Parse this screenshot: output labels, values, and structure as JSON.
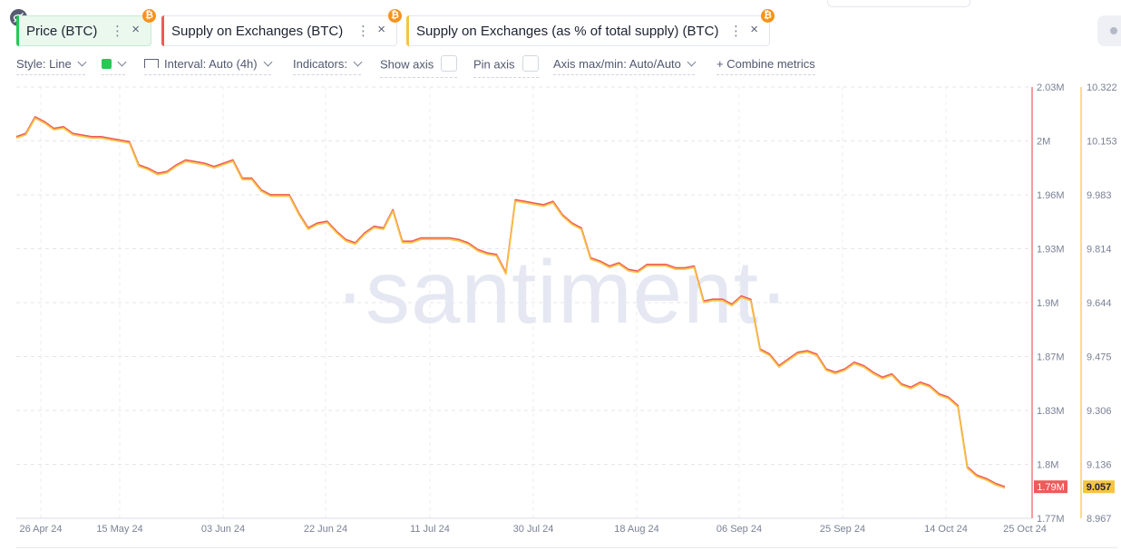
{
  "metrics": [
    {
      "label": "Price (BTC)",
      "color": "#26c953",
      "menu": "⋮",
      "close": "×",
      "badge": "₿"
    },
    {
      "label": "Supply on Exchanges (BTC)",
      "color": "#ef5a5a",
      "menu": "⋮",
      "close": "×",
      "badge": "₿"
    },
    {
      "label": "Supply on Exchanges (as % of total supply) (BTC)",
      "color": "#f5c542",
      "menu": "⋮",
      "close": "×",
      "badge": "₿"
    }
  ],
  "toolbar": {
    "style": "Style: Line",
    "interval": "Interval: Auto (4h)",
    "indicators": "Indicators:",
    "show_axis": "Show axis",
    "pin_axis": "Pin axis",
    "axis_maxmin": "Axis max/min: Auto/Auto",
    "combine": "+ Combine metrics",
    "swatch_color": "#26c953"
  },
  "chart_data": {
    "type": "line",
    "watermark": "·santiment·",
    "x_ticks": [
      "26 Apr 24",
      "15 May 24",
      "03 Jun 24",
      "22 Jun 24",
      "11 Jul 24",
      "30 Jul 24",
      "18 Aug 24",
      "06 Sep 24",
      "25 Sep 24",
      "14 Oct 24",
      "25 Oct 24"
    ],
    "y_left": {
      "ticks": [
        "2.03M",
        "2M",
        "1.96M",
        "1.93M",
        "1.9M",
        "1.87M",
        "1.83M",
        "1.8M",
        "1.77M"
      ],
      "current": "1.79M",
      "color": "#ef5a5a"
    },
    "y_right": {
      "ticks": [
        "10.322",
        "10.153",
        "9.983",
        "9.814",
        "9.644",
        "9.475",
        "9.306",
        "9.136",
        "8.967"
      ],
      "current": "9.057",
      "color": "#f5c542"
    },
    "ylim": [
      1.77,
      2.03
    ],
    "series": [
      {
        "name": "Supply on Exchanges (BTC)",
        "color": "#ef5a5a",
        "unit": "M",
        "points": [
          [
            "26 Apr 24",
            2.0
          ],
          [
            "27 Apr 24",
            2.002
          ],
          [
            "28 Apr 24",
            2.012
          ],
          [
            "29 Apr 24",
            2.009
          ],
          [
            "30 Apr 24",
            2.005
          ],
          [
            "1 May 24",
            2.006
          ],
          [
            "2 May 24",
            2.002
          ],
          [
            "3 May 24",
            2.001
          ],
          [
            "4 May 24",
            2.0
          ],
          [
            "5 May 24",
            2.0
          ],
          [
            "6 May 24",
            1.999
          ],
          [
            "7 May 24",
            1.998
          ],
          [
            "8 May 24",
            1.997
          ],
          [
            "9 May 24",
            1.983
          ],
          [
            "10 May 24",
            1.981
          ],
          [
            "11 May 24",
            1.978
          ],
          [
            "12 May 24",
            1.979
          ],
          [
            "13 May 24",
            1.983
          ],
          [
            "14 May 24",
            1.986
          ],
          [
            "15 May 24",
            1.985
          ],
          [
            "16 May 24",
            1.984
          ],
          [
            "17 May 24",
            1.982
          ],
          [
            "18 May 24",
            1.984
          ],
          [
            "19 May 24",
            1.986
          ],
          [
            "20 May 24",
            1.975
          ],
          [
            "22 May 24",
            1.975
          ],
          [
            "24 May 24",
            1.968
          ],
          [
            "26 May 24",
            1.965
          ],
          [
            "28 May 24",
            1.965
          ],
          [
            "30 May 24",
            1.965
          ],
          [
            "1 Jun 24",
            1.954
          ],
          [
            "3 Jun 24",
            1.945
          ],
          [
            "5 Jun 24",
            1.948
          ],
          [
            "7 Jun 24",
            1.949
          ],
          [
            "9 Jun 24",
            1.943
          ],
          [
            "11 Jun 24",
            1.938
          ],
          [
            "13 Jun 24",
            1.936
          ],
          [
            "15 Jun 24",
            1.942
          ],
          [
            "17 Jun 24",
            1.946
          ],
          [
            "19 Jun 24",
            1.945
          ],
          [
            "20 Jun 24",
            1.956
          ],
          [
            "21 Jun 24",
            1.937
          ],
          [
            "23 Jun 24",
            1.937
          ],
          [
            "25 Jun 24",
            1.939
          ],
          [
            "27 Jun 24",
            1.939
          ],
          [
            "29 Jun 24",
            1.939
          ],
          [
            "1 Jul 24",
            1.939
          ],
          [
            "3 Jul 24",
            1.938
          ],
          [
            "5 Jul 24",
            1.936
          ],
          [
            "7 Jul 24",
            1.932
          ],
          [
            "9 Jul 24",
            1.93
          ],
          [
            "11 Jul 24",
            1.929
          ],
          [
            "13 Jul 24",
            1.918
          ],
          [
            "14 Jul 24",
            1.962
          ],
          [
            "15 Jul 24",
            1.961
          ],
          [
            "17 Jul 24",
            1.96
          ],
          [
            "19 Jul 24",
            1.959
          ],
          [
            "21 Jul 24",
            1.961
          ],
          [
            "23 Jul 24",
            1.953
          ],
          [
            "25 Jul 24",
            1.948
          ],
          [
            "27 Jul 24",
            1.945
          ],
          [
            "29 Jul 24",
            1.927
          ],
          [
            "31 Jul 24",
            1.925
          ],
          [
            "2 Aug 24",
            1.922
          ],
          [
            "4 Aug 24",
            1.924
          ],
          [
            "6 Aug 24",
            1.92
          ],
          [
            "8 Aug 24",
            1.919
          ],
          [
            "10 Aug 24",
            1.923
          ],
          [
            "12 Aug 24",
            1.923
          ],
          [
            "14 Aug 24",
            1.923
          ],
          [
            "16 Aug 24",
            1.921
          ],
          [
            "18 Aug 24",
            1.921
          ],
          [
            "20 Aug 24",
            1.922
          ],
          [
            "22 Aug 24",
            1.901
          ],
          [
            "24 Aug 24",
            1.902
          ],
          [
            "26 Aug 24",
            1.902
          ],
          [
            "28 Aug 24",
            1.899
          ],
          [
            "30 Aug 24",
            1.904
          ],
          [
            "1 Sep 24",
            1.902
          ],
          [
            "3 Sep 24",
            1.872
          ],
          [
            "5 Sep 24",
            1.869
          ],
          [
            "7 Sep 24",
            1.862
          ],
          [
            "9 Sep 24",
            1.866
          ],
          [
            "11 Sep 24",
            1.87
          ],
          [
            "13 Sep 24",
            1.871
          ],
          [
            "15 Sep 24",
            1.869
          ],
          [
            "17 Sep 24",
            1.86
          ],
          [
            "19 Sep 24",
            1.858
          ],
          [
            "21 Sep 24",
            1.86
          ],
          [
            "23 Sep 24",
            1.864
          ],
          [
            "25 Sep 24",
            1.862
          ],
          [
            "27 Sep 24",
            1.858
          ],
          [
            "29 Sep 24",
            1.855
          ],
          [
            "1 Oct 24",
            1.857
          ],
          [
            "3 Oct 24",
            1.851
          ],
          [
            "5 Oct 24",
            1.849
          ],
          [
            "7 Oct 24",
            1.852
          ],
          [
            "9 Oct 24",
            1.85
          ],
          [
            "11 Oct 24",
            1.845
          ],
          [
            "13 Oct 24",
            1.843
          ],
          [
            "14 Oct 24",
            1.838
          ],
          [
            "16 Oct 24",
            1.801
          ],
          [
            "18 Oct 24",
            1.796
          ],
          [
            "20 Oct 24",
            1.794
          ],
          [
            "22 Oct 24",
            1.791
          ],
          [
            "24 Oct 24",
            1.789
          ]
        ]
      },
      {
        "name": "Supply on Exchanges (as % of total supply) (BTC)",
        "color": "#f5c542",
        "unit": "%",
        "points": "tracks the BTC series one-to-one on the right axis"
      }
    ]
  }
}
